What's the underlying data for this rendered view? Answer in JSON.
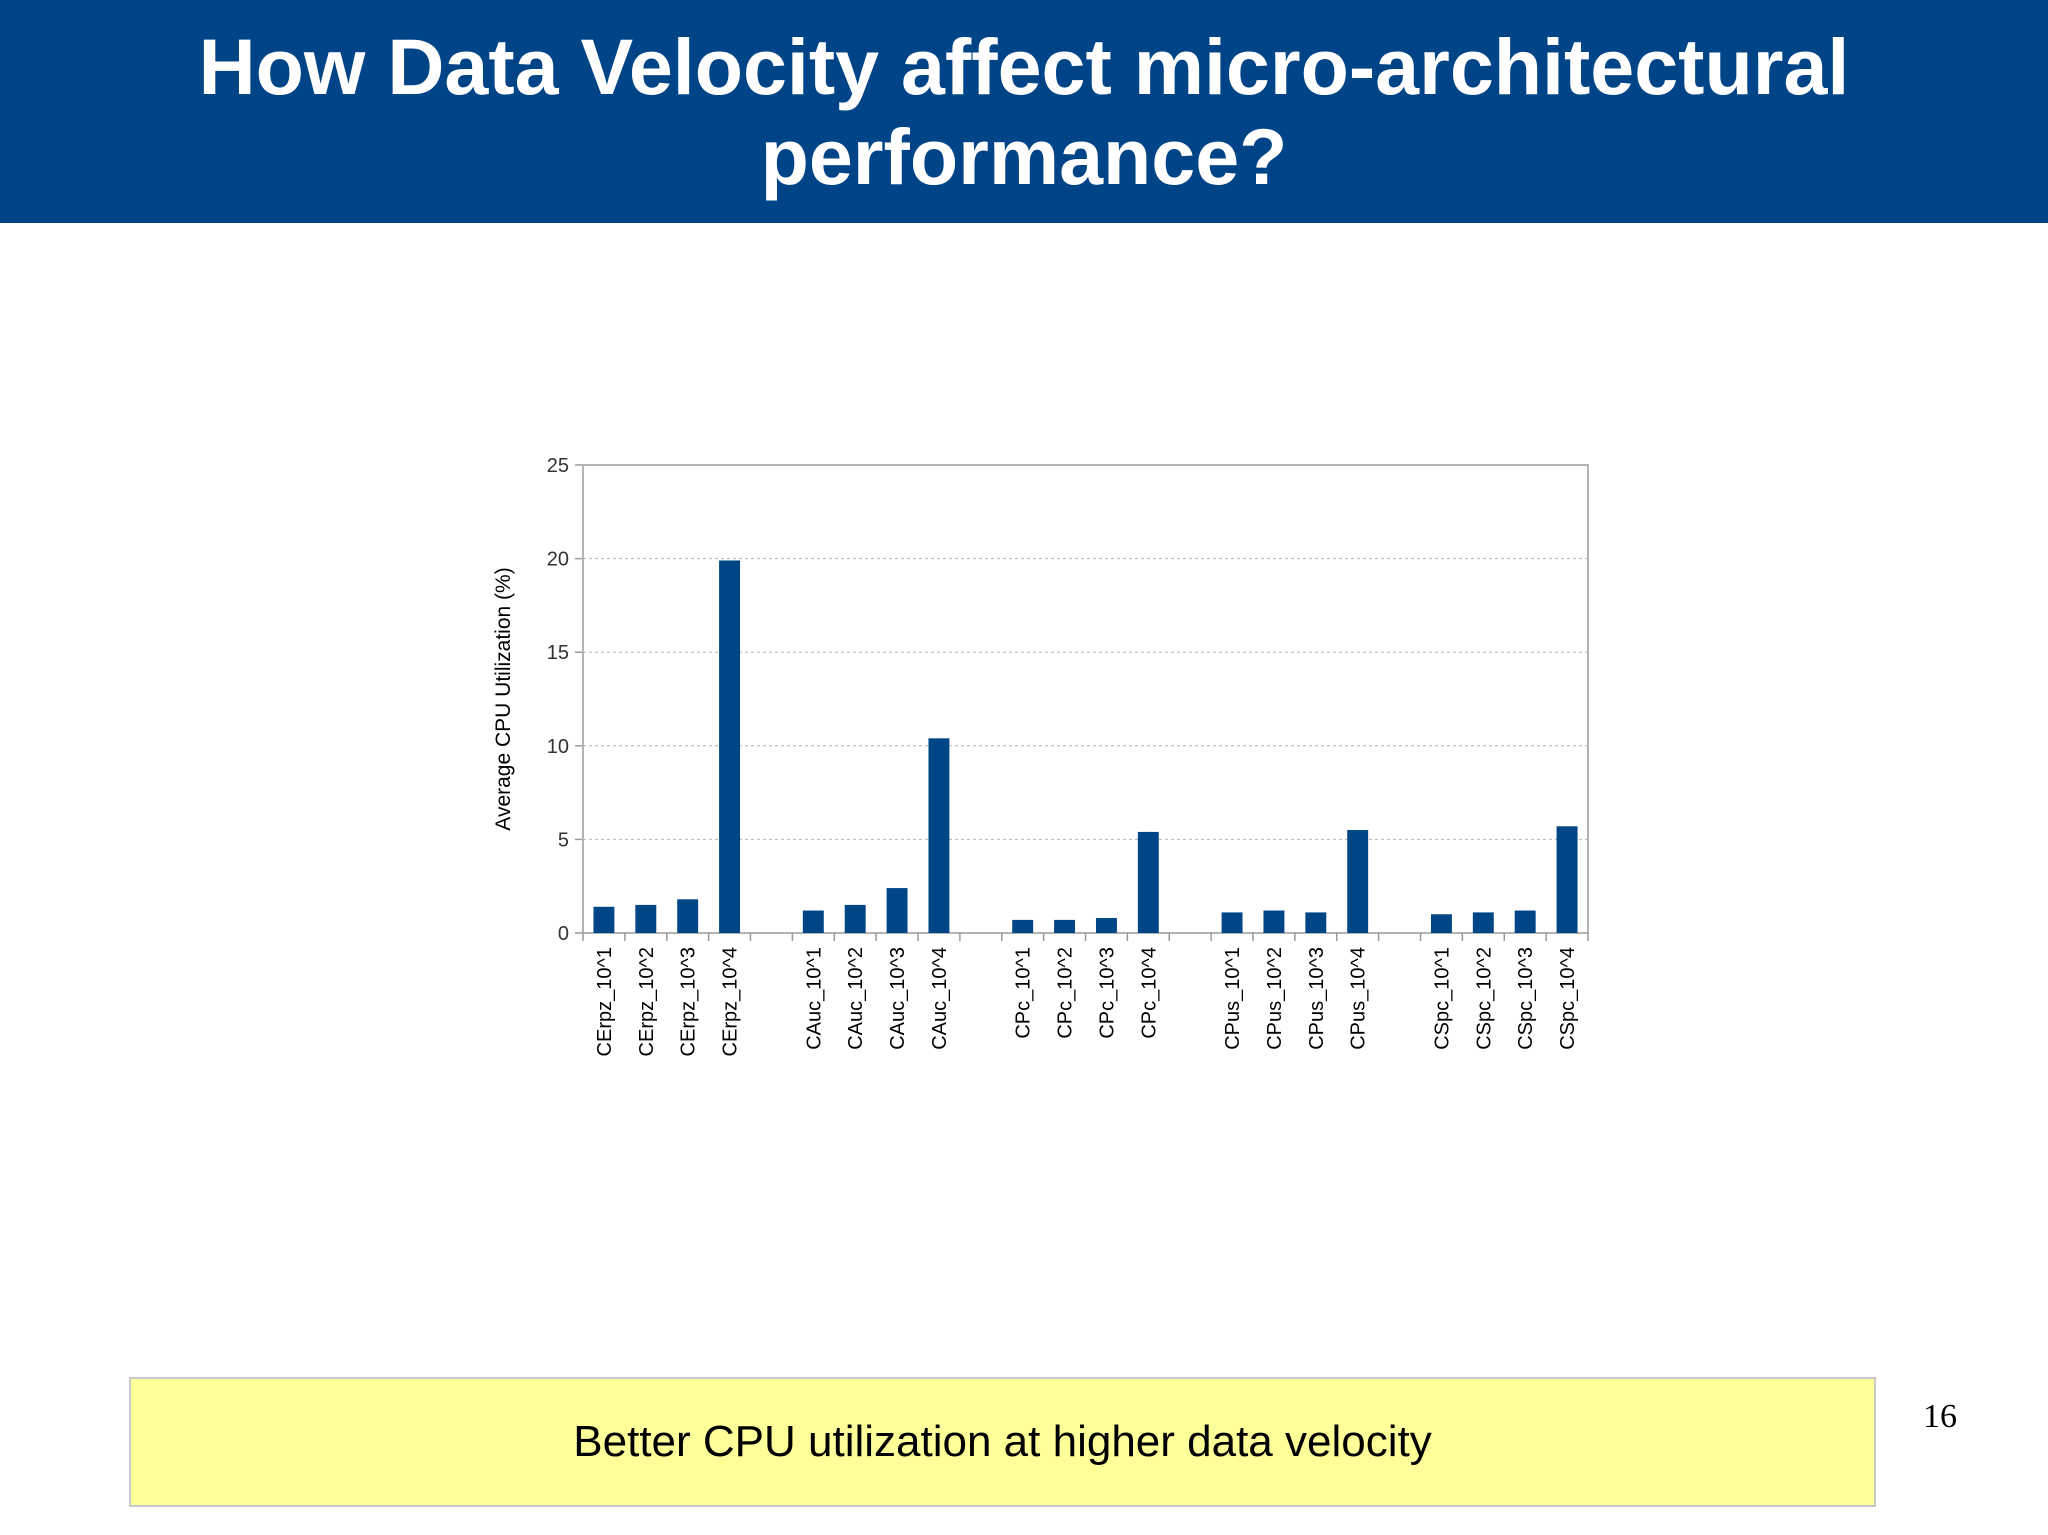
{
  "slide": {
    "title": "How Data Velocity affect micro-architectural performance?",
    "callout": "Better CPU utilization at higher data velocity",
    "page_number": "16"
  },
  "colors": {
    "header_bg": "#004488",
    "bar": "#004586",
    "callout_bg": "#ffff99",
    "grid": "#b3b3b3"
  },
  "chart_data": {
    "type": "bar",
    "ylabel": "Average CPU Utilization (%)",
    "xlabel": "",
    "ylim": [
      0,
      25
    ],
    "yticks": [
      0,
      5,
      10,
      15,
      20,
      25
    ],
    "grid": true,
    "legend": "none",
    "groups": [
      {
        "categories": [
          "CErpz_10^1",
          "CErpz_10^2",
          "CErpz_10^3",
          "CErpz_10^4"
        ],
        "values": [
          1.4,
          1.5,
          1.8,
          19.9
        ]
      },
      {
        "categories": [
          "CAuc_10^1",
          "CAuc_10^2",
          "CAuc_10^3",
          "CAuc_10^4"
        ],
        "values": [
          1.2,
          1.5,
          2.4,
          10.4
        ]
      },
      {
        "categories": [
          "CPc_10^1",
          "CPc_10^2",
          "CPc_10^3",
          "CPc_10^4"
        ],
        "values": [
          0.7,
          0.7,
          0.8,
          5.4
        ]
      },
      {
        "categories": [
          "CPus_10^1",
          "CPus_10^2",
          "CPus_10^3",
          "CPus_10^4"
        ],
        "values": [
          1.1,
          1.2,
          1.1,
          5.5
        ]
      },
      {
        "categories": [
          "CSpc_10^1",
          "CSpc_10^2",
          "CSpc_10^3",
          "CSpc_10^4"
        ],
        "values": [
          1.0,
          1.1,
          1.2,
          5.7
        ]
      }
    ]
  }
}
